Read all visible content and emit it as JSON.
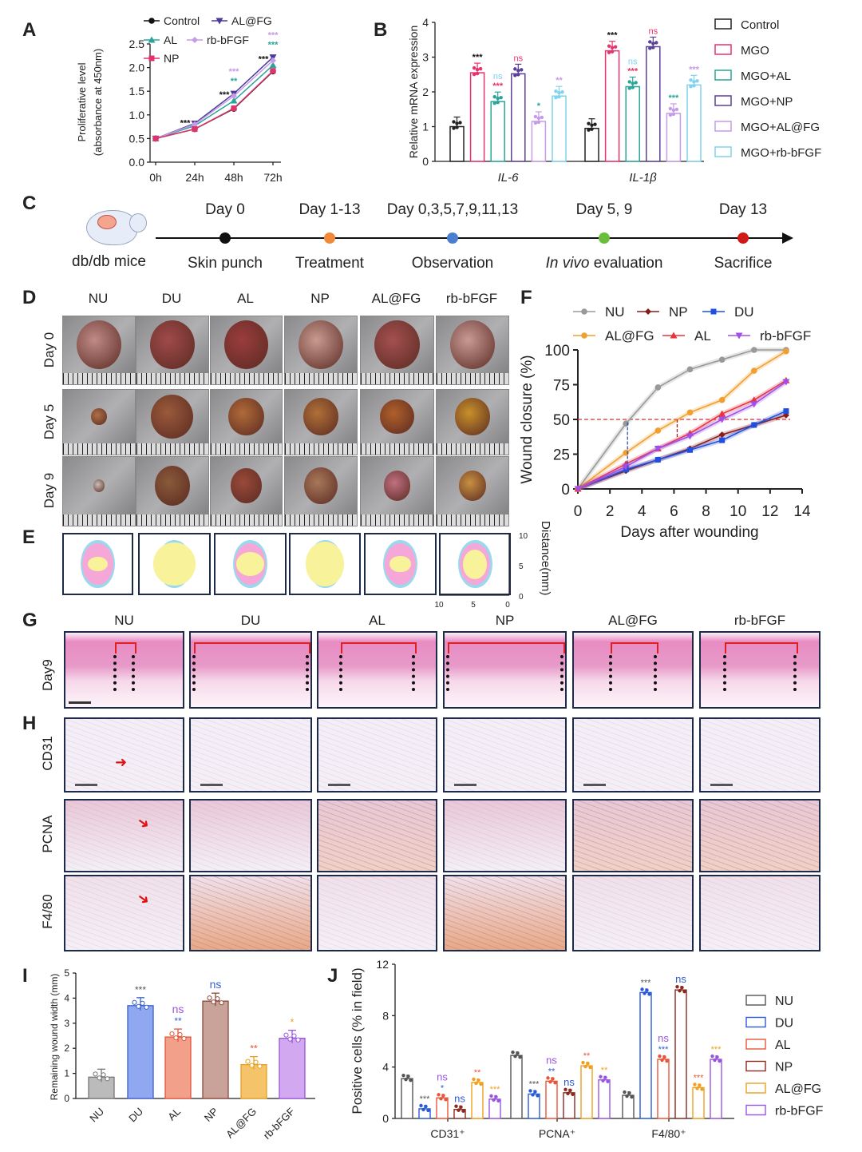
{
  "panel_letters": {
    "A": "A",
    "B": "B",
    "C": "C",
    "D": "D",
    "E": "E",
    "F": "F",
    "G": "G",
    "H": "H",
    "I": "I",
    "J": "J"
  },
  "chart_data": [
    {
      "id": "A",
      "type": "line",
      "categories": [
        "0h",
        "24h",
        "48h",
        "72h"
      ],
      "ylabel": "Proliferative level",
      "ylabel2": "(absorbance at 450nm)",
      "ylim": [
        0,
        2.5
      ],
      "yticks": [
        "0.0",
        "0.5",
        "1.0",
        "1.5",
        "2.0",
        "2.5"
      ],
      "series": [
        {
          "name": "Control",
          "color": "#111111",
          "values": [
            0.5,
            0.7,
            1.13,
            1.92
          ]
        },
        {
          "name": "AL@FG",
          "color": "#4b3a9a",
          "values": [
            0.5,
            0.82,
            1.45,
            2.22
          ]
        },
        {
          "name": "AL",
          "color": "#2aa59a",
          "values": [
            0.5,
            0.77,
            1.3,
            2.05
          ]
        },
        {
          "name": "rb-bFGF",
          "color": "#c79be8",
          "values": [
            0.5,
            0.8,
            1.4,
            2.15
          ]
        },
        {
          "name": "NP",
          "color": "#e0336b",
          "values": [
            0.5,
            0.7,
            1.14,
            1.93
          ]
        }
      ],
      "annotations": [
        {
          "x": "24h",
          "text": "***",
          "color": "#111111"
        },
        {
          "x": "48h",
          "text": "***",
          "color": "#111111"
        },
        {
          "x": "48h",
          "text": "**",
          "color": "#2aa59a"
        },
        {
          "x": "48h",
          "text": "***",
          "color": "#c79be8"
        },
        {
          "x": "72h",
          "text": "***",
          "color": "#111111"
        },
        {
          "x": "72h",
          "text": "***",
          "color": "#2aa59a"
        },
        {
          "x": "72h",
          "text": "***",
          "color": "#c79be8"
        }
      ]
    },
    {
      "id": "B",
      "type": "bar",
      "categories": [
        "IL-6",
        "IL-1β"
      ],
      "ylabel": "Relative mRNA expression",
      "ylim": [
        0,
        4
      ],
      "yticks": [
        "0",
        "1",
        "2",
        "3",
        "4"
      ],
      "series": [
        {
          "name": "Control",
          "color": "#222222",
          "values": [
            1.0,
            0.95
          ],
          "sig": [
            [],
            []
          ]
        },
        {
          "name": "MGO",
          "color": "#e8336b",
          "values": [
            2.55,
            3.18
          ],
          "sig": [
            [
              {
                "t": "***",
                "c": "#111111"
              }
            ],
            [
              {
                "t": "***",
                "c": "#111111"
              }
            ]
          ]
        },
        {
          "name": "MGO+AL",
          "color": "#2aa59a",
          "values": [
            1.72,
            2.15
          ],
          "sig": [
            [
              {
                "t": "ns",
                "c": "#7fd3ec"
              },
              {
                "t": "***",
                "c": "#e8336b"
              }
            ],
            [
              {
                "t": "ns",
                "c": "#7fd3ec"
              },
              {
                "t": "***",
                "c": "#e8336b"
              }
            ]
          ]
        },
        {
          "name": "MGO+NP",
          "color": "#5a3f96",
          "values": [
            2.52,
            3.3
          ],
          "sig": [
            [
              {
                "t": "ns",
                "c": "#e8336b"
              }
            ],
            [
              {
                "t": "ns",
                "c": "#e8336b"
              }
            ]
          ]
        },
        {
          "name": "MGO+AL@FG",
          "color": "#c79be8",
          "values": [
            1.15,
            1.38
          ],
          "sig": [
            [
              {
                "t": "*",
                "c": "#2aa59a"
              }
            ],
            [
              {
                "t": "***",
                "c": "#2aa59a"
              }
            ]
          ]
        },
        {
          "name": "MGO+rb-bFGF",
          "color": "#7fd3ec",
          "values": [
            1.88,
            2.2
          ],
          "sig": [
            [
              {
                "t": "**",
                "c": "#c79be8"
              }
            ],
            [
              {
                "t": "***",
                "c": "#c79be8"
              }
            ]
          ]
        }
      ],
      "legend": "right"
    },
    {
      "id": "F",
      "type": "line",
      "x": [
        0,
        3,
        5,
        7,
        9,
        11,
        13
      ],
      "xlabel": "Days after wounding",
      "ylabel": "Wound closure (%)",
      "xlim": [
        0,
        14
      ],
      "ylim": [
        0,
        100
      ],
      "xticks": [
        "0",
        "2",
        "4",
        "6",
        "8",
        "10",
        "12",
        "14"
      ],
      "yticks": [
        "0",
        "25",
        "50",
        "75",
        "100"
      ],
      "reference_line": 50,
      "series": [
        {
          "name": "NU",
          "color": "#999999",
          "values": [
            0,
            47,
            73,
            86,
            93,
            100,
            100
          ]
        },
        {
          "name": "NP",
          "color": "#8b1a1a",
          "values": [
            0,
            13,
            21,
            29,
            39,
            46,
            53
          ]
        },
        {
          "name": "DU",
          "color": "#1f4ee0",
          "values": [
            0,
            14,
            21,
            28,
            35,
            46,
            56
          ]
        },
        {
          "name": "AL@FG",
          "color": "#f0a030",
          "values": [
            0,
            26,
            42,
            55,
            64,
            85,
            99
          ]
        },
        {
          "name": "AL",
          "color": "#e8333b",
          "values": [
            0,
            18,
            29,
            40,
            54,
            64,
            78
          ]
        },
        {
          "name": "rb-bFGF",
          "color": "#a050e8",
          "values": [
            0,
            16,
            29,
            38,
            50,
            61,
            77
          ]
        }
      ],
      "legend": "top"
    },
    {
      "id": "I",
      "type": "bar",
      "categories": [
        "NU",
        "DU",
        "AL",
        "NP",
        "AL@FG",
        "rb-bFGF"
      ],
      "ylabel": "Remaining wound width (mm)",
      "ylim": [
        0,
        5
      ],
      "yticks": [
        "0",
        "1",
        "2",
        "3",
        "4",
        "5"
      ],
      "values": [
        0.85,
        3.7,
        2.45,
        3.88,
        1.35,
        2.4
      ],
      "colors": [
        "#bbbbbb",
        "#8fa8f0",
        "#f2a08a",
        "#c9a29a",
        "#f5c46a",
        "#d2a8f0"
      ],
      "edge_colors": [
        "#777777",
        "#3a5fd0",
        "#e2553a",
        "#8b4a3a",
        "#e8a020",
        "#9a55e0"
      ],
      "sig": [
        [],
        [
          {
            "t": "***",
            "c": "#555555"
          }
        ],
        [
          {
            "t": "ns",
            "c": "#9a55e0"
          },
          {
            "t": "**",
            "c": "#3a5fd0"
          }
        ],
        [
          {
            "t": "ns",
            "c": "#3a5fd0"
          }
        ],
        [
          {
            "t": "**",
            "c": "#e2553a"
          }
        ],
        [
          {
            "t": "*",
            "c": "#e8a020"
          }
        ]
      ]
    },
    {
      "id": "J",
      "type": "bar",
      "categories": [
        "CD31⁺",
        "PCNA⁺",
        "F4/80⁺"
      ],
      "ylabel": "Positive cells (% in field)",
      "ylim": [
        0,
        12
      ],
      "yticks": [
        "0",
        "4",
        "8",
        "12"
      ],
      "series": [
        {
          "name": "NU",
          "color": "#555555",
          "values": [
            3.1,
            4.9,
            1.8
          ],
          "sig": [
            [],
            [],
            []
          ]
        },
        {
          "name": "DU",
          "color": "#2a5bd7",
          "values": [
            0.75,
            1.9,
            9.8
          ],
          "sig": [
            [
              {
                "t": "***",
                "c": "#555555"
              }
            ],
            [
              {
                "t": "***",
                "c": "#555555"
              }
            ],
            [
              {
                "t": "***",
                "c": "#555555"
              }
            ]
          ]
        },
        {
          "name": "AL",
          "color": "#e8553a",
          "values": [
            1.6,
            2.9,
            4.6
          ],
          "sig": [
            [
              {
                "t": "ns",
                "c": "#9a55e0"
              },
              {
                "t": "*",
                "c": "#2a5bd7"
              }
            ],
            [
              {
                "t": "ns",
                "c": "#9a55e0"
              },
              {
                "t": "**",
                "c": "#2a5bd7"
              }
            ],
            [
              {
                "t": "ns",
                "c": "#9a55e0"
              },
              {
                "t": "***",
                "c": "#2a5bd7"
              }
            ]
          ]
        },
        {
          "name": "NP",
          "color": "#8b2a1f",
          "values": [
            0.7,
            2.0,
            10.0
          ],
          "sig": [
            [
              {
                "t": "ns",
                "c": "#2a5bd7"
              }
            ],
            [
              {
                "t": "ns",
                "c": "#2a5bd7"
              }
            ],
            [
              {
                "t": "ns",
                "c": "#2a5bd7"
              }
            ]
          ]
        },
        {
          "name": "AL@FG",
          "color": "#f0a020",
          "values": [
            2.8,
            4.1,
            2.4
          ],
          "sig": [
            [
              {
                "t": "**",
                "c": "#e8553a"
              }
            ],
            [
              {
                "t": "**",
                "c": "#e8553a"
              }
            ],
            [
              {
                "t": "***",
                "c": "#e8553a"
              }
            ]
          ]
        },
        {
          "name": "rb-bFGF",
          "color": "#9a55e0",
          "values": [
            1.5,
            3.0,
            4.6
          ],
          "sig": [
            [
              {
                "t": "***",
                "c": "#f0a020"
              }
            ],
            [
              {
                "t": "**",
                "c": "#f0a020"
              }
            ],
            [
              {
                "t": "***",
                "c": "#f0a020"
              }
            ]
          ]
        }
      ],
      "legend": "right"
    }
  ],
  "timeline": {
    "subject": "db/db mice",
    "events": [
      {
        "day": "Day 0",
        "label": "Skin punch",
        "color": "#111111"
      },
      {
        "day": "Day 1-13",
        "label": "Treatment",
        "color": "#f08a3a"
      },
      {
        "day": "Day 0,3,5,7,9,11,13",
        "label": "Observation",
        "color": "#4a7fd0"
      },
      {
        "day": "Day 5, 9",
        "label": "In vivo evaluation",
        "color": "#6abf3a"
      },
      {
        "day": "Day 13",
        "label": "Sacrifice",
        "color": "#d01a1a"
      }
    ]
  },
  "groups": [
    "NU",
    "DU",
    "AL",
    "NP",
    "AL@FG",
    "rb-bFGF"
  ],
  "panelD": {
    "rows": [
      "Day 0",
      "Day 5",
      "Day 9"
    ]
  },
  "panelE": {
    "axis_label": "Distance(mm)",
    "yticks": [
      "10",
      "5",
      "0"
    ],
    "xticks": [
      "10",
      "5",
      "0"
    ]
  },
  "panelG": {
    "row": "Day9"
  },
  "panelH": {
    "rows": [
      "CD31",
      "PCNA",
      "F4/80"
    ]
  }
}
